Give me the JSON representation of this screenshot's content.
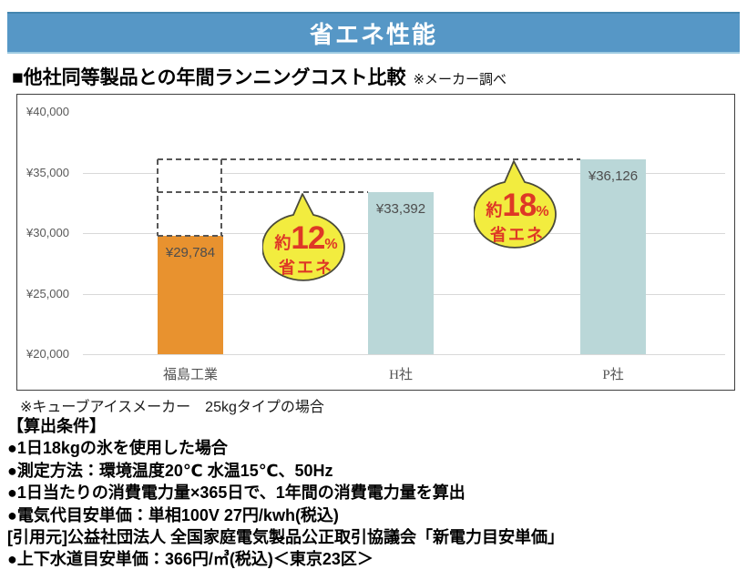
{
  "header": {
    "title": "省エネ性能"
  },
  "section_title": {
    "text": "■他社同等製品との年間ランニングコスト比較",
    "note": "※メーカー調べ"
  },
  "chart_data": {
    "type": "bar",
    "title": "他社同等製品との年間ランニングコスト比較",
    "categories": [
      "福島工業",
      "H社",
      "P社"
    ],
    "values": [
      29784,
      33392,
      36126
    ],
    "value_labels": [
      "¥29,784",
      "¥33,392",
      "¥36,126"
    ],
    "bar_colors": [
      "#E8922F",
      "#BAD7D8",
      "#BAD7D8"
    ],
    "ylim": [
      20000,
      40000
    ],
    "yticks": [
      40000,
      35000,
      30000,
      25000,
      20000
    ],
    "ytick_labels": [
      "¥40,000",
      "¥35,000",
      "¥30,000",
      "¥25,000",
      "¥20,000"
    ],
    "gridline_values": [
      35000,
      30000,
      25000,
      20000
    ],
    "grid": true,
    "legend": false,
    "annotations": [
      {
        "prefix": "約",
        "value": "12",
        "suffix": "%",
        "label": "省エネ",
        "compares": "福島工業 vs H社"
      },
      {
        "prefix": "約",
        "value": "18",
        "suffix": "%",
        "label": "省エネ",
        "compares": "福島工業 vs P社"
      }
    ]
  },
  "footnote": {
    "text": "※キューブアイスメーカー　25kgタイプの場合"
  },
  "conditions": {
    "heading": "【算出条件】",
    "items": [
      "●1日18kgの氷を使用した場合",
      "●測定方法：環境温度20℃ 水温15℃、50Hz",
      "●1日当たりの消費電力量×365日で、1年間の消費電力量を算出",
      "●電気代目安単価：単相100V 27円/kwh(税込)",
      "[引用元]公益社団法人 全国家庭電気製品公正取引協議会「新電力目安単価」",
      "●上下水道目安単価：366円/㎥(税込)＜東京23区＞"
    ]
  },
  "colors": {
    "header_bg": "#5697C6",
    "bar_orange": "#E8922F",
    "bar_teal": "#BAD7D8",
    "bubble_fill": "#F2EC3F",
    "bubble_text": "#DE3826",
    "gridline": "#D9D9D9",
    "dashed_line": "#575757"
  }
}
